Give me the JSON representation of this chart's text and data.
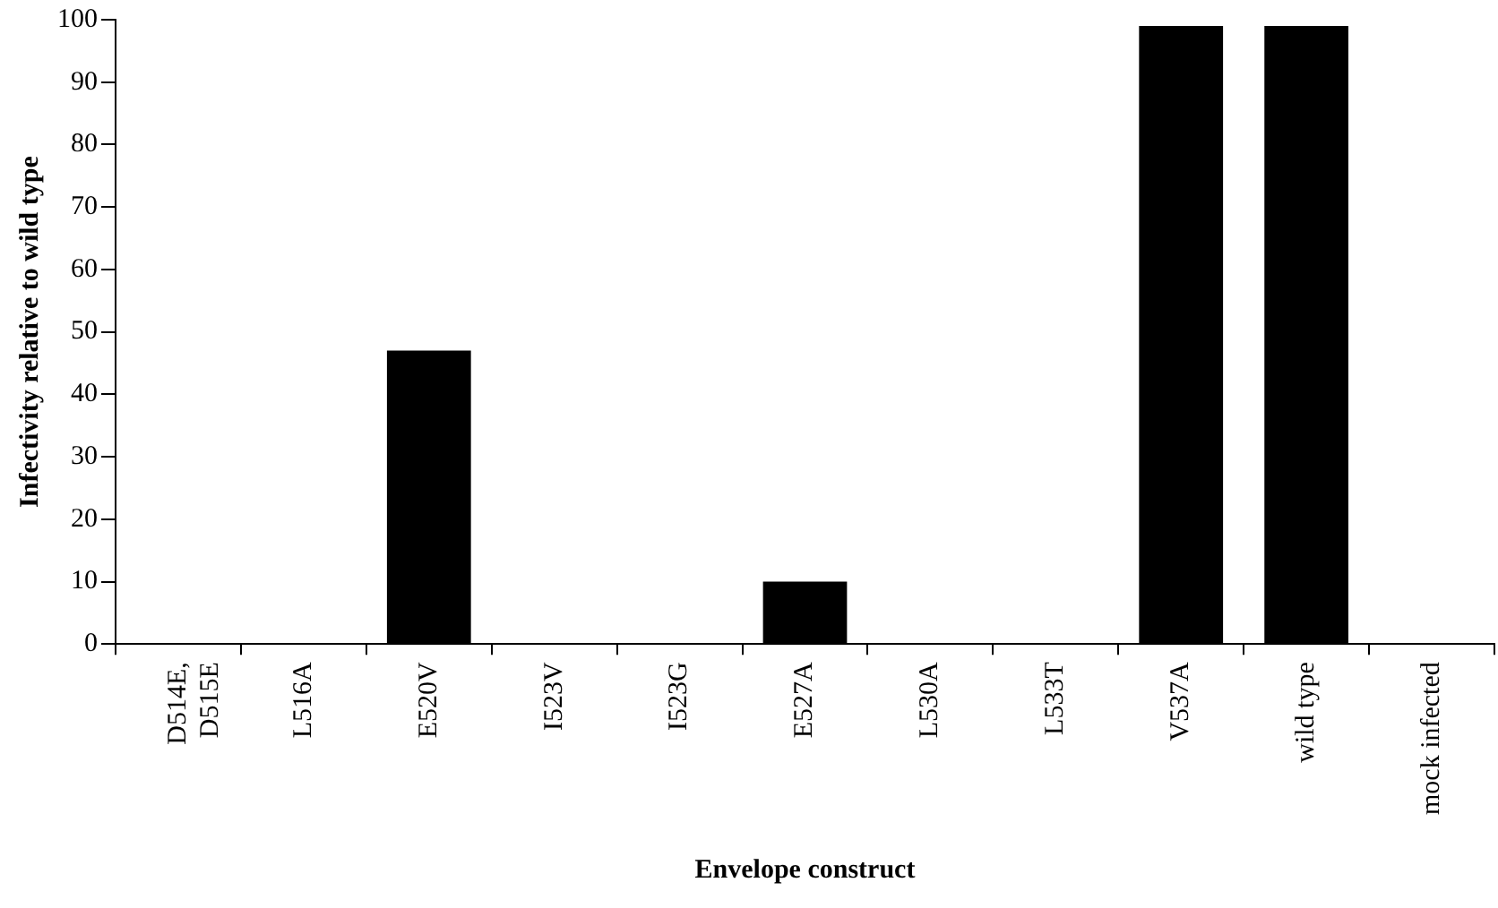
{
  "chart_data": {
    "type": "bar",
    "xlabel": "Envelope construct",
    "ylabel": "Infectivity relative to wild type",
    "categories": [
      "D514E, D515E",
      "L516A",
      "E520V",
      "I523V",
      "I523G",
      "E527A",
      "L530A",
      "L533T",
      "V537A",
      "wild type",
      "mock infected"
    ],
    "values": [
      0,
      0,
      47,
      0,
      0,
      10,
      0,
      0,
      99,
      99,
      0
    ],
    "color": "#000000",
    "ylim": [
      0,
      100
    ],
    "yticks": [
      0,
      10,
      20,
      30,
      40,
      50,
      60,
      70,
      80,
      90,
      100
    ],
    "grid": false,
    "legend": false
  }
}
